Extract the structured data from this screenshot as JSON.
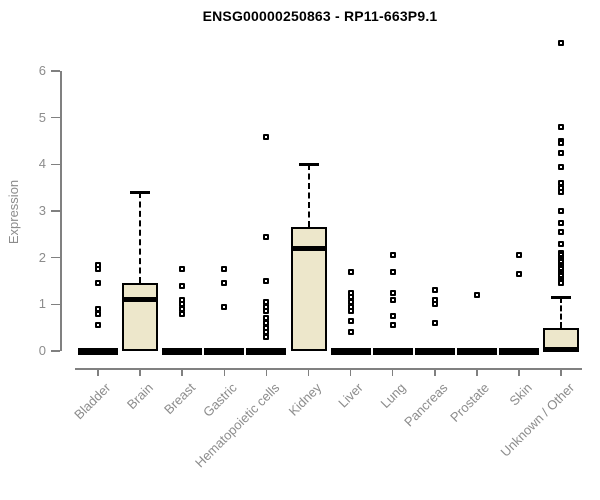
{
  "chart_data": {
    "type": "boxplot",
    "title": "ENSG00000250863 - RP11-663P9.1",
    "ylabel": "Expression",
    "ylim": [
      0,
      6.8
    ],
    "yticks": [
      0,
      1,
      2,
      3,
      4,
      5,
      6
    ],
    "grid": false,
    "legend": "none",
    "colors": {
      "box_fill": "#ede7cb",
      "box_stroke": "#000000",
      "axis": "#808080",
      "labels": "#8c8c8c",
      "title": "#000000",
      "background": "#ffffff"
    },
    "categories": [
      {
        "label": "Bladder",
        "q1": 0,
        "median": 0,
        "q3": 0,
        "whisker_low": 0,
        "whisker_high": 0,
        "outliers": [
          1.85,
          1.75,
          1.45,
          0.9,
          0.8,
          0.55
        ]
      },
      {
        "label": "Brain",
        "q1": 0,
        "median": 1.1,
        "q3": 1.45,
        "whisker_low": 0,
        "whisker_high": 3.4,
        "outliers": []
      },
      {
        "label": "Breast",
        "q1": 0,
        "median": 0,
        "q3": 0,
        "whisker_low": 0,
        "whisker_high": 0,
        "outliers": [
          1.75,
          1.4,
          1.1,
          1.0,
          0.9,
          0.8
        ]
      },
      {
        "label": "Gastric",
        "q1": 0,
        "median": 0,
        "q3": 0,
        "whisker_low": 0,
        "whisker_high": 0,
        "outliers": [
          1.75,
          1.45,
          0.95
        ]
      },
      {
        "label": "Hematopoietic cells",
        "q1": 0,
        "median": 0,
        "q3": 0,
        "whisker_low": 0,
        "whisker_high": 0,
        "outliers": [
          4.58,
          2.45,
          1.5,
          1.05,
          0.95,
          0.85,
          0.7,
          0.6,
          0.5,
          0.4,
          0.3
        ]
      },
      {
        "label": "Kidney",
        "q1": 0,
        "median": 2.2,
        "q3": 2.65,
        "whisker_low": 0,
        "whisker_high": 4.0,
        "outliers": []
      },
      {
        "label": "Liver",
        "q1": 0,
        "median": 0,
        "q3": 0,
        "whisker_low": 0,
        "whisker_high": 0,
        "outliers": [
          1.7,
          1.25,
          1.15,
          1.05,
          0.95,
          0.85,
          0.65,
          0.4
        ]
      },
      {
        "label": "Lung",
        "q1": 0,
        "median": 0,
        "q3": 0,
        "whisker_low": 0,
        "whisker_high": 0,
        "outliers": [
          2.05,
          1.7,
          1.25,
          1.1,
          0.75,
          0.55
        ]
      },
      {
        "label": "Pancreas",
        "q1": 0,
        "median": 0,
        "q3": 0,
        "whisker_low": 0,
        "whisker_high": 0,
        "outliers": [
          1.3,
          1.1,
          1.0,
          0.6
        ]
      },
      {
        "label": "Prostate",
        "q1": 0,
        "median": 0,
        "q3": 0,
        "whisker_low": 0,
        "whisker_high": 0,
        "outliers": [
          1.2
        ]
      },
      {
        "label": "Skin",
        "q1": 0,
        "median": 0,
        "q3": 0,
        "whisker_low": 0,
        "whisker_high": 0,
        "outliers": [
          2.05,
          1.65
        ]
      },
      {
        "label": "Unknown / Other",
        "q1": 0,
        "median": 0.04,
        "q3": 0.5,
        "whisker_low": 0,
        "whisker_high": 1.15,
        "outliers": [
          6.6,
          4.8,
          4.5,
          4.45,
          4.25,
          3.95,
          3.6,
          3.5,
          3.4,
          3.0,
          2.75,
          2.55,
          2.3,
          2.1,
          2.05,
          2.0,
          1.95,
          1.9,
          1.85,
          1.8,
          1.75,
          1.7,
          1.65,
          1.6,
          1.55,
          1.5,
          1.45
        ]
      }
    ]
  }
}
